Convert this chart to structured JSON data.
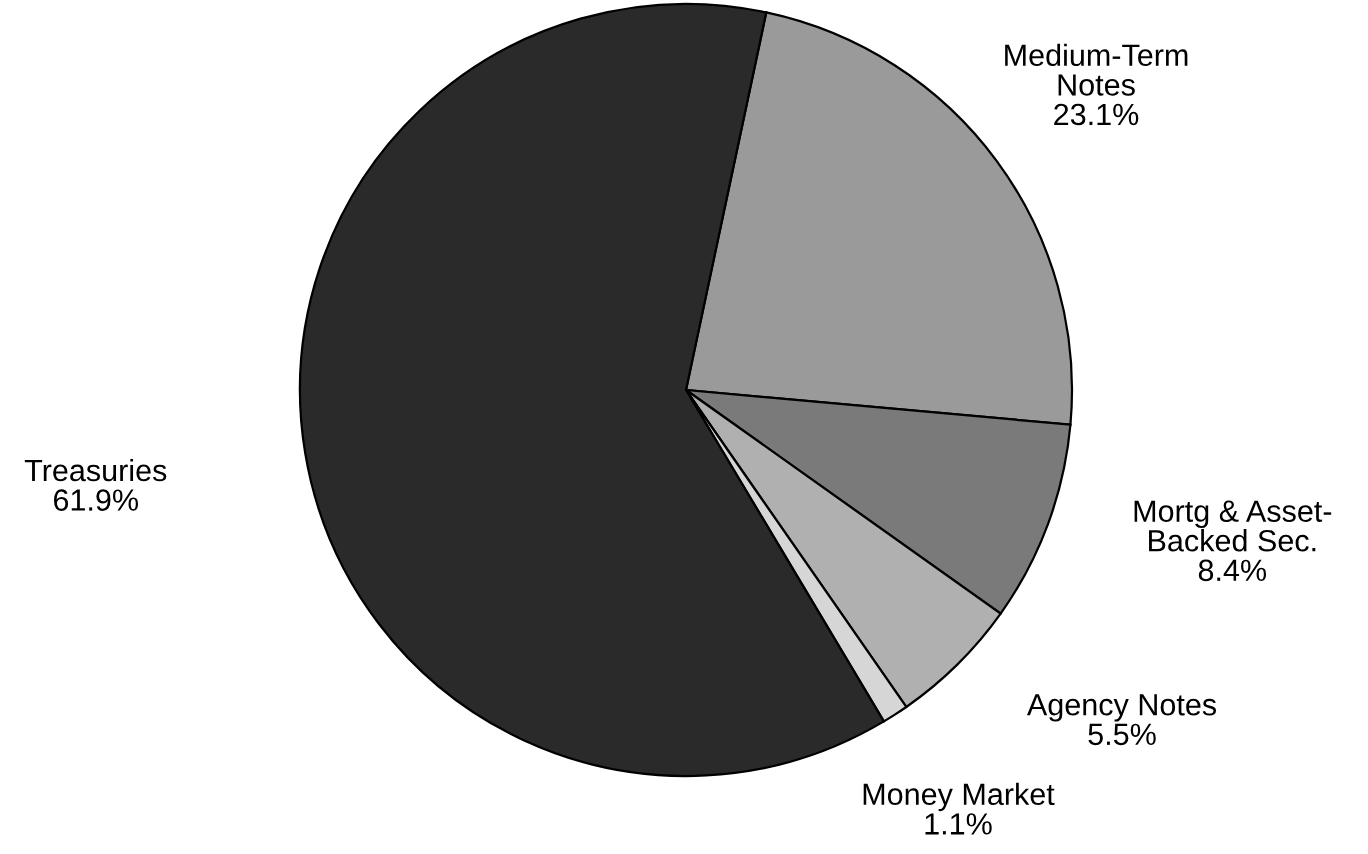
{
  "chart_data": {
    "type": "pie",
    "categories": [
      "Medium-Term\nNotes",
      "Mortg & Asset-\nBacked Sec.",
      "Agency Notes",
      "Money Market",
      "Treasuries"
    ],
    "values": [
      23.1,
      8.4,
      5.5,
      1.1,
      61.9
    ],
    "value_labels": [
      "23.1%",
      "8.4%",
      "5.5%",
      "1.1%",
      "61.9%"
    ],
    "colors": [
      "#9a9a9a",
      "#7a7a7a",
      "#b0b0b0",
      "#d6d6d6",
      "#2a2a2a"
    ]
  }
}
